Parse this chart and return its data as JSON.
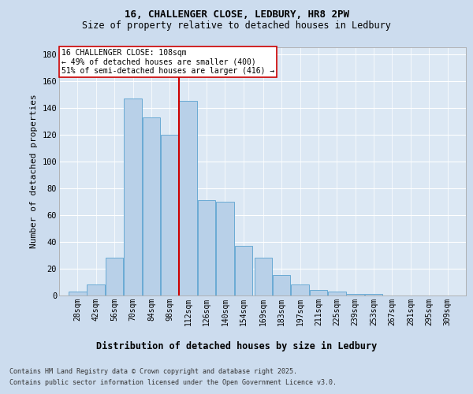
{
  "title_line1": "16, CHALLENGER CLOSE, LEDBURY, HR8 2PW",
  "title_line2": "Size of property relative to detached houses in Ledbury",
  "xlabel": "Distribution of detached houses by size in Ledbury",
  "ylabel": "Number of detached properties",
  "footer_line1": "Contains HM Land Registry data © Crown copyright and database right 2025.",
  "footer_line2": "Contains public sector information licensed under the Open Government Licence v3.0.",
  "bar_labels": [
    "28sqm",
    "42sqm",
    "56sqm",
    "70sqm",
    "84sqm",
    "98sqm",
    "112sqm",
    "126sqm",
    "140sqm",
    "154sqm",
    "169sqm",
    "183sqm",
    "197sqm",
    "211sqm",
    "225sqm",
    "239sqm",
    "253sqm",
    "267sqm",
    "281sqm",
    "295sqm",
    "309sqm"
  ],
  "bar_values": [
    3,
    8,
    28,
    147,
    133,
    120,
    145,
    71,
    70,
    37,
    28,
    15,
    8,
    4,
    3,
    1,
    1,
    0,
    0,
    0,
    0
  ],
  "bar_color": "#b8d0e8",
  "bar_edge_color": "#6aaad4",
  "background_color": "#ccdcee",
  "plot_bg_color": "#dce8f4",
  "grid_color": "#ffffff",
  "vline_x": 112,
  "vline_color": "#cc0000",
  "annotation_text": "16 CHALLENGER CLOSE: 108sqm\n← 49% of detached houses are smaller (400)\n51% of semi-detached houses are larger (416) →",
  "annotation_box_color": "#ffffff",
  "annotation_box_edge": "#cc0000",
  "ylim": [
    0,
    185
  ],
  "yticks": [
    0,
    20,
    40,
    60,
    80,
    100,
    120,
    140,
    160,
    180
  ],
  "bin_width": 14,
  "num_bars": 21,
  "property_size": 108,
  "title_fontsize": 9,
  "subtitle_fontsize": 8.5,
  "ylabel_fontsize": 8,
  "xlabel_fontsize": 8.5,
  "tick_fontsize": 7,
  "footer_fontsize": 6,
  "annot_fontsize": 7
}
